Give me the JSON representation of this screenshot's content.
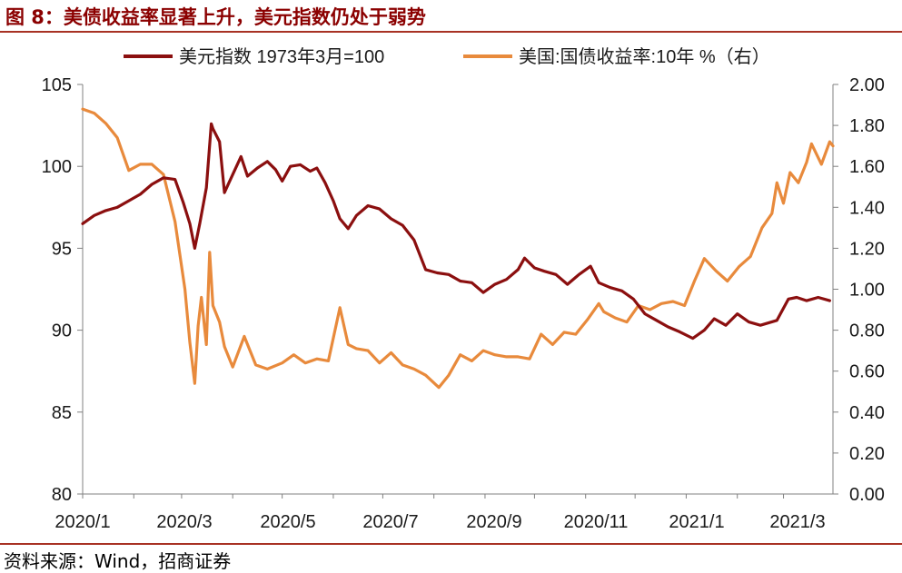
{
  "figure": {
    "title": "图 8：美债收益率显著上升，美元指数仍处于弱势",
    "source": "资料来源：Wind，招商证券"
  },
  "chart_data": {
    "type": "line",
    "legend_position": "top",
    "grid": false,
    "x_ticks": [
      "2020/1",
      "2020/3",
      "2020/5",
      "2020/7",
      "2020/9",
      "2020/11",
      "2021/1",
      "2021/3"
    ],
    "x_range": [
      "2020-01-01",
      "2021-03-31"
    ],
    "y_left": {
      "ticks": [
        "80",
        "85",
        "90",
        "95",
        "100",
        "105"
      ],
      "range": [
        80,
        105
      ]
    },
    "y_right": {
      "ticks": [
        "0.00",
        "0.20",
        "0.40",
        "0.60",
        "0.80",
        "1.00",
        "1.20",
        "1.40",
        "1.60",
        "1.80",
        "2.00"
      ],
      "range": [
        0,
        2.0
      ]
    },
    "series": [
      {
        "name": "美元指数 1973年3月=100",
        "axis": "left",
        "color": "#8b0f0f",
        "points": [
          [
            "2020-01-01",
            96.5
          ],
          [
            "2020-01-08",
            97.0
          ],
          [
            "2020-01-15",
            97.3
          ],
          [
            "2020-01-22",
            97.5
          ],
          [
            "2020-01-29",
            97.9
          ],
          [
            "2020-02-05",
            98.3
          ],
          [
            "2020-02-12",
            98.9
          ],
          [
            "2020-02-19",
            99.3
          ],
          [
            "2020-02-26",
            99.2
          ],
          [
            "2020-03-02",
            97.8
          ],
          [
            "2020-03-06",
            96.5
          ],
          [
            "2020-03-09",
            95.0
          ],
          [
            "2020-03-12",
            96.5
          ],
          [
            "2020-03-16",
            98.7
          ],
          [
            "2020-03-19",
            102.6
          ],
          [
            "2020-03-20",
            102.3
          ],
          [
            "2020-03-24",
            101.5
          ],
          [
            "2020-03-27",
            98.4
          ],
          [
            "2020-04-01",
            99.5
          ],
          [
            "2020-04-06",
            100.6
          ],
          [
            "2020-04-10",
            99.4
          ],
          [
            "2020-04-16",
            99.9
          ],
          [
            "2020-04-22",
            100.3
          ],
          [
            "2020-04-27",
            99.8
          ],
          [
            "2020-05-01",
            99.1
          ],
          [
            "2020-05-06",
            100.0
          ],
          [
            "2020-05-12",
            100.1
          ],
          [
            "2020-05-18",
            99.7
          ],
          [
            "2020-05-22",
            99.9
          ],
          [
            "2020-05-27",
            99.0
          ],
          [
            "2020-06-01",
            97.9
          ],
          [
            "2020-06-05",
            96.8
          ],
          [
            "2020-06-10",
            96.2
          ],
          [
            "2020-06-15",
            97.0
          ],
          [
            "2020-06-22",
            97.6
          ],
          [
            "2020-06-29",
            97.4
          ],
          [
            "2020-07-06",
            96.8
          ],
          [
            "2020-07-13",
            96.4
          ],
          [
            "2020-07-20",
            95.5
          ],
          [
            "2020-07-27",
            93.7
          ],
          [
            "2020-08-03",
            93.5
          ],
          [
            "2020-08-10",
            93.4
          ],
          [
            "2020-08-17",
            93.0
          ],
          [
            "2020-08-24",
            92.9
          ],
          [
            "2020-08-31",
            92.3
          ],
          [
            "2020-09-07",
            92.8
          ],
          [
            "2020-09-14",
            93.1
          ],
          [
            "2020-09-21",
            93.7
          ],
          [
            "2020-09-25",
            94.4
          ],
          [
            "2020-10-01",
            93.8
          ],
          [
            "2020-10-07",
            93.6
          ],
          [
            "2020-10-14",
            93.4
          ],
          [
            "2020-10-21",
            92.8
          ],
          [
            "2020-10-28",
            93.4
          ],
          [
            "2020-11-04",
            93.9
          ],
          [
            "2020-11-09",
            92.9
          ],
          [
            "2020-11-16",
            92.6
          ],
          [
            "2020-11-23",
            92.4
          ],
          [
            "2020-11-30",
            91.9
          ],
          [
            "2020-12-07",
            91.0
          ],
          [
            "2020-12-14",
            90.6
          ],
          [
            "2020-12-21",
            90.2
          ],
          [
            "2020-12-28",
            89.9
          ],
          [
            "2021-01-05",
            89.5
          ],
          [
            "2021-01-12",
            90.0
          ],
          [
            "2021-01-18",
            90.7
          ],
          [
            "2021-01-25",
            90.3
          ],
          [
            "2021-02-01",
            91.0
          ],
          [
            "2021-02-08",
            90.5
          ],
          [
            "2021-02-15",
            90.3
          ],
          [
            "2021-02-25",
            90.6
          ],
          [
            "2021-03-04",
            91.9
          ],
          [
            "2021-03-09",
            92.0
          ],
          [
            "2021-03-15",
            91.8
          ],
          [
            "2021-03-22",
            92.0
          ],
          [
            "2021-03-29",
            91.8
          ]
        ]
      },
      {
        "name": "美国:国债收益率:10年 %（右）",
        "axis": "right",
        "color": "#e88a3c",
        "points": [
          [
            "2020-01-01",
            1.88
          ],
          [
            "2020-01-08",
            1.86
          ],
          [
            "2020-01-15",
            1.81
          ],
          [
            "2020-01-22",
            1.74
          ],
          [
            "2020-01-29",
            1.58
          ],
          [
            "2020-02-05",
            1.61
          ],
          [
            "2020-02-12",
            1.61
          ],
          [
            "2020-02-19",
            1.56
          ],
          [
            "2020-02-26",
            1.33
          ],
          [
            "2020-03-03",
            1.0
          ],
          [
            "2020-03-06",
            0.74
          ],
          [
            "2020-03-09",
            0.54
          ],
          [
            "2020-03-11",
            0.82
          ],
          [
            "2020-03-13",
            0.96
          ],
          [
            "2020-03-16",
            0.73
          ],
          [
            "2020-03-18",
            1.18
          ],
          [
            "2020-03-20",
            0.92
          ],
          [
            "2020-03-24",
            0.84
          ],
          [
            "2020-03-27",
            0.72
          ],
          [
            "2020-04-01",
            0.62
          ],
          [
            "2020-04-08",
            0.77
          ],
          [
            "2020-04-15",
            0.63
          ],
          [
            "2020-04-22",
            0.61
          ],
          [
            "2020-05-01",
            0.64
          ],
          [
            "2020-05-08",
            0.68
          ],
          [
            "2020-05-15",
            0.64
          ],
          [
            "2020-05-22",
            0.66
          ],
          [
            "2020-05-29",
            0.65
          ],
          [
            "2020-06-05",
            0.91
          ],
          [
            "2020-06-10",
            0.73
          ],
          [
            "2020-06-15",
            0.71
          ],
          [
            "2020-06-22",
            0.7
          ],
          [
            "2020-06-29",
            0.64
          ],
          [
            "2020-07-06",
            0.69
          ],
          [
            "2020-07-13",
            0.63
          ],
          [
            "2020-07-20",
            0.61
          ],
          [
            "2020-07-27",
            0.58
          ],
          [
            "2020-08-04",
            0.52
          ],
          [
            "2020-08-10",
            0.58
          ],
          [
            "2020-08-17",
            0.68
          ],
          [
            "2020-08-24",
            0.65
          ],
          [
            "2020-08-31",
            0.7
          ],
          [
            "2020-09-07",
            0.68
          ],
          [
            "2020-09-14",
            0.67
          ],
          [
            "2020-09-21",
            0.67
          ],
          [
            "2020-09-28",
            0.66
          ],
          [
            "2020-10-05",
            0.78
          ],
          [
            "2020-10-12",
            0.73
          ],
          [
            "2020-10-19",
            0.79
          ],
          [
            "2020-10-26",
            0.78
          ],
          [
            "2020-11-02",
            0.85
          ],
          [
            "2020-11-09",
            0.93
          ],
          [
            "2020-11-12",
            0.89
          ],
          [
            "2020-11-19",
            0.86
          ],
          [
            "2020-11-26",
            0.84
          ],
          [
            "2020-12-03",
            0.92
          ],
          [
            "2020-12-10",
            0.9
          ],
          [
            "2020-12-17",
            0.93
          ],
          [
            "2020-12-24",
            0.94
          ],
          [
            "2020-12-31",
            0.92
          ],
          [
            "2021-01-06",
            1.04
          ],
          [
            "2021-01-12",
            1.15
          ],
          [
            "2021-01-19",
            1.09
          ],
          [
            "2021-01-26",
            1.04
          ],
          [
            "2021-02-02",
            1.11
          ],
          [
            "2021-02-09",
            1.16
          ],
          [
            "2021-02-16",
            1.3
          ],
          [
            "2021-02-22",
            1.37
          ],
          [
            "2021-02-25",
            1.52
          ],
          [
            "2021-03-01",
            1.42
          ],
          [
            "2021-03-05",
            1.57
          ],
          [
            "2021-03-10",
            1.52
          ],
          [
            "2021-03-15",
            1.62
          ],
          [
            "2021-03-18",
            1.71
          ],
          [
            "2021-03-24",
            1.61
          ],
          [
            "2021-03-29",
            1.72
          ],
          [
            "2021-03-31",
            1.7
          ]
        ]
      }
    ]
  }
}
